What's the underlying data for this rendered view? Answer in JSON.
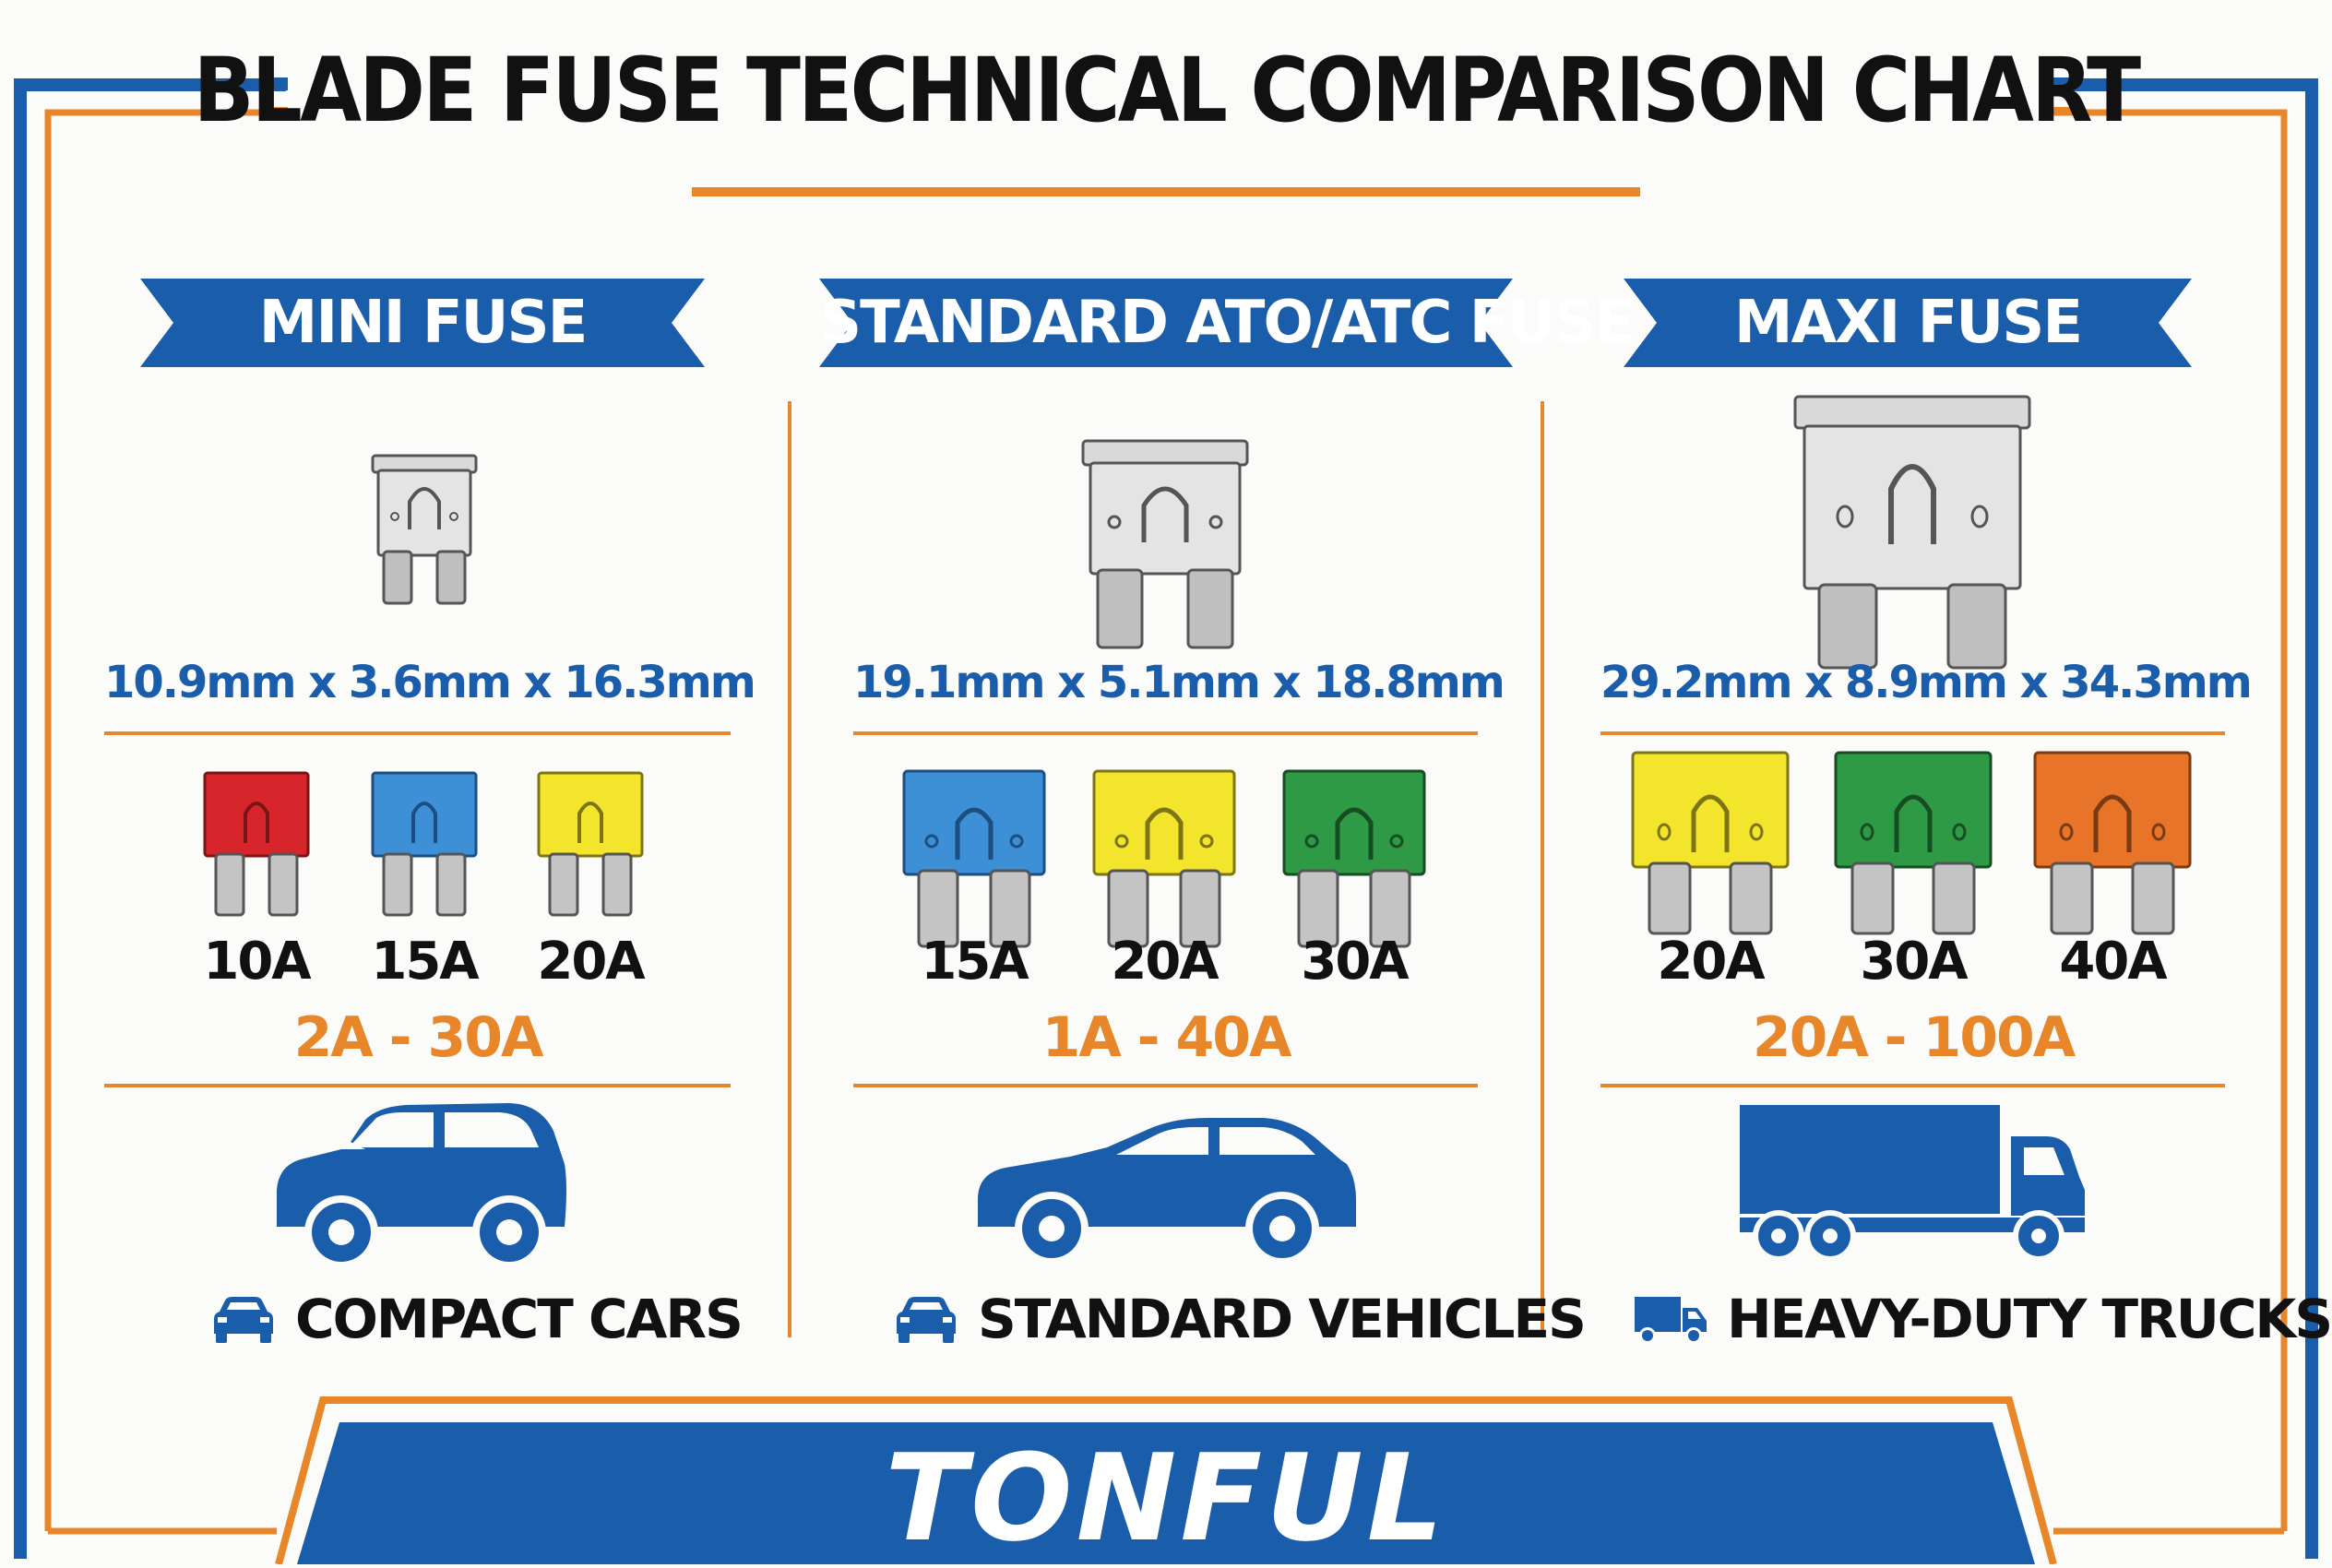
{
  "title": "BLADE FUSE TECHNICAL COMPARISON CHART",
  "brand": "TONFUL",
  "colors": {
    "blue": "#1a5dab",
    "orange": "#e8862a",
    "red": "#d6262b",
    "yellow": "#f2e52c",
    "green": "#2e9a45",
    "light_blue": "#3d8fd6",
    "fuse_orange": "#e8742a"
  },
  "columns": [
    {
      "name": "MINI FUSE",
      "dimensions": "10.9mm x 3.6mm x 16.3mm",
      "ratings": [
        {
          "label": "10A",
          "color": "red"
        },
        {
          "label": "15A",
          "color": "light_blue"
        },
        {
          "label": "20A",
          "color": "yellow"
        }
      ],
      "range": "2A - 30A",
      "vehicle_icon": "hatchback-car-icon",
      "application": "COMPACT CARS"
    },
    {
      "name": "STANDARD ATO/ATC FUSE",
      "dimensions": "19.1mm x 5.1mm x 18.8mm",
      "ratings": [
        {
          "label": "15A",
          "color": "light_blue"
        },
        {
          "label": "20A",
          "color": "yellow"
        },
        {
          "label": "30A",
          "color": "green"
        }
      ],
      "range": "1A - 40A",
      "vehicle_icon": "sedan-car-icon",
      "application": "STANDARD VEHICLES"
    },
    {
      "name": "MAXI FUSE",
      "dimensions": "29.2mm x 8.9mm x 34.3mm",
      "ratings": [
        {
          "label": "20A",
          "color": "yellow"
        },
        {
          "label": "30A",
          "color": "green"
        },
        {
          "label": "40A",
          "color": "fuse_orange"
        }
      ],
      "range": "20A - 100A",
      "vehicle_icon": "truck-icon",
      "application": "HEAVY-DUTY TRUCKS"
    }
  ]
}
